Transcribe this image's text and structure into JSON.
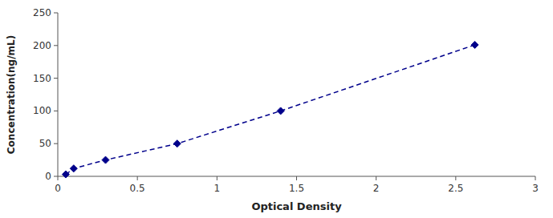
{
  "chart_data": {
    "type": "line",
    "x": [
      0.05,
      0.1,
      0.3,
      0.75,
      1.4,
      2.62
    ],
    "values": [
      3,
      12,
      25,
      50,
      100,
      201
    ],
    "color": "#00008B",
    "marker": "diamond",
    "line_style": "dashed",
    "xlabel": "Optical Density",
    "ylabel": "Concentration(ng/mL)",
    "xlim": [
      0,
      3
    ],
    "ylim": [
      0,
      250
    ],
    "xticks": [
      0,
      0.5,
      1,
      1.5,
      2,
      2.5,
      3
    ],
    "yticks": [
      0,
      50,
      100,
      150,
      200,
      250
    ],
    "grid": false
  }
}
